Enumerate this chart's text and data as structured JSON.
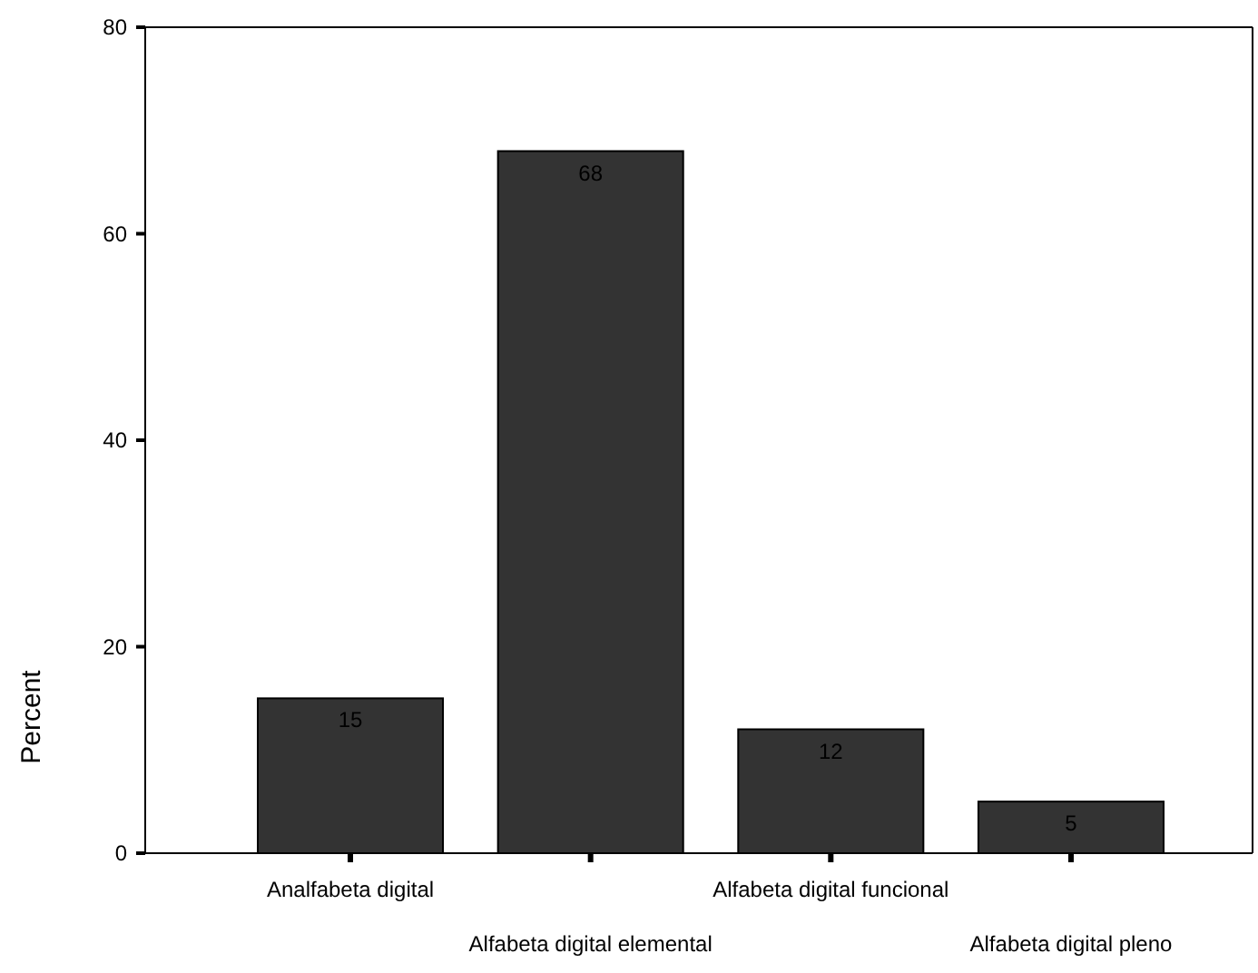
{
  "chart_data": {
    "type": "bar",
    "ylabel": "Percent",
    "categories": [
      "Analfabeta digital",
      "Alfabeta digital elemental",
      "Alfabeta digital funcional",
      "Alfabeta digital pleno"
    ],
    "values": [
      15,
      68,
      12,
      5
    ],
    "color": "#333333",
    "data_labels": true,
    "ylim": [
      0,
      80
    ],
    "yticks": [
      0,
      20,
      40,
      60,
      80
    ],
    "grid": false
  }
}
